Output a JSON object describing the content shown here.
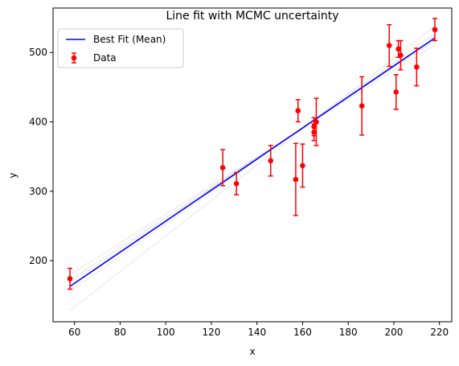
{
  "chart_data": {
    "type": "scatter",
    "title": "Line fit with MCMC uncertainty",
    "xlabel": "x",
    "ylabel": "y",
    "xlim": [
      50.6,
      225.4
    ],
    "ylim": [
      112,
      564
    ],
    "xticks": [
      60,
      80,
      100,
      120,
      140,
      160,
      180,
      200,
      220
    ],
    "yticks": [
      200,
      300,
      400,
      500
    ],
    "grid": false,
    "legend_position": "top-left",
    "legend": [
      {
        "label": "Best Fit (Mean)",
        "color": "#0000ff",
        "marker": "line"
      },
      {
        "label": "Data",
        "color": "#ff0000",
        "marker": "errorbar-point"
      }
    ],
    "series": [
      {
        "name": "Data",
        "kind": "errorbar",
        "color": "#ff0000",
        "points": [
          {
            "x": 58,
            "y": 174,
            "yerr": 15
          },
          {
            "x": 125,
            "y": 334,
            "yerr": 26
          },
          {
            "x": 131,
            "y": 311,
            "yerr": 16
          },
          {
            "x": 146,
            "y": 344,
            "yerr": 22
          },
          {
            "x": 157,
            "y": 317,
            "yerr": 52
          },
          {
            "x": 158,
            "y": 416,
            "yerr": 16
          },
          {
            "x": 160,
            "y": 337,
            "yerr": 31
          },
          {
            "x": 165,
            "y": 385,
            "yerr": 12
          },
          {
            "x": 165,
            "y": 393,
            "yerr": 13
          },
          {
            "x": 166,
            "y": 400,
            "yerr": 34
          },
          {
            "x": 186,
            "y": 423,
            "yerr": 42
          },
          {
            "x": 198,
            "y": 510,
            "yerr": 30
          },
          {
            "x": 201,
            "y": 443,
            "yerr": 25
          },
          {
            "x": 202,
            "y": 505,
            "yerr": 12
          },
          {
            "x": 203,
            "y": 496,
            "yerr": 21
          },
          {
            "x": 210,
            "y": 479,
            "yerr": 27
          },
          {
            "x": 218,
            "y": 533,
            "yerr": 16
          }
        ]
      },
      {
        "name": "Best Fit (Mean)",
        "kind": "line",
        "color": "#0000ff",
        "x": [
          58,
          218
        ],
        "y": [
          163,
          521
        ]
      },
      {
        "kind": "samples",
        "color": "#bbbbbb",
        "lines": [
          {
            "x": [
              58,
              218
            ],
            "y": [
              163,
              521
            ]
          },
          {
            "x": [
              58,
              218
            ],
            "y": [
              172,
              517
            ]
          },
          {
            "x": [
              58,
              218
            ],
            "y": [
              155,
              527
            ]
          },
          {
            "x": [
              58,
              218
            ],
            "y": [
              180,
              511
            ]
          },
          {
            "x": [
              58,
              218
            ],
            "y": [
              128,
              538
            ]
          },
          {
            "x": [
              58,
              218
            ],
            "y": [
              168,
              519
            ]
          }
        ]
      }
    ]
  }
}
